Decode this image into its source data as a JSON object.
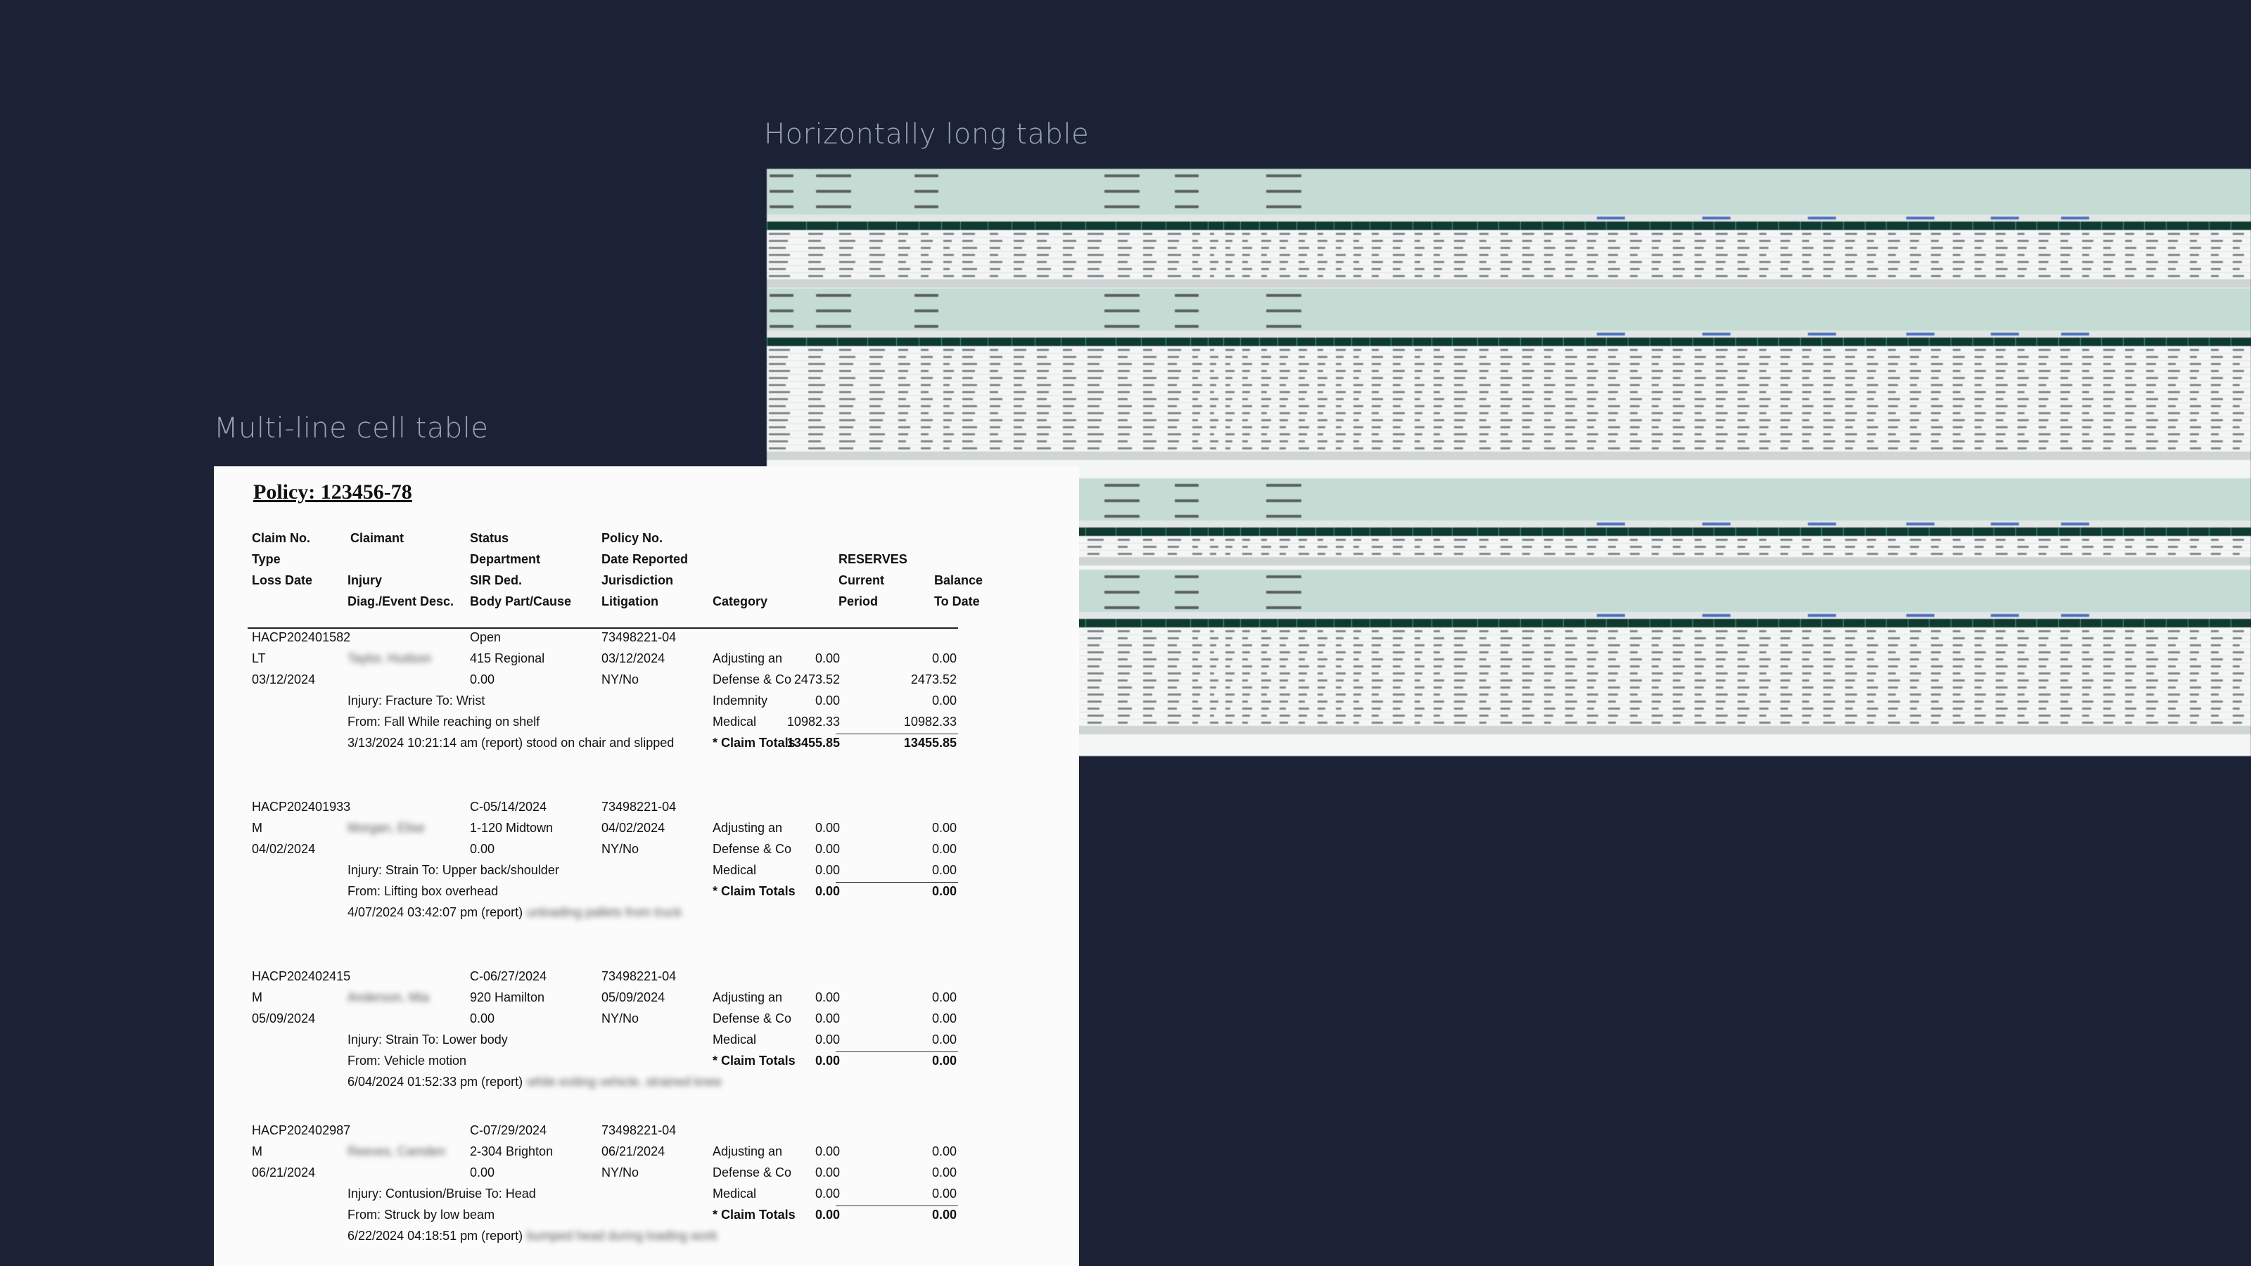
{
  "captions": {
    "wide": "Horizontally long table",
    "multi": "Multi-line cell table"
  },
  "colors": {
    "background": "#1c2236",
    "spreadsheet_header_fill": "#c5dcd5",
    "spreadsheet_column_bar": "#103a30",
    "document_paper": "#fbfbfb"
  },
  "document": {
    "policy_title": "Policy: 123456-78",
    "headers": {
      "claim_no": "Claim No.",
      "claimant": "Claimant",
      "status": "Status",
      "policy_no": "Policy No.",
      "type": "Type",
      "department": "Department",
      "date_reported": "Date Reported",
      "reserves": "RESERVES",
      "loss_date": "Loss Date",
      "injury": "Injury",
      "sir_ded": "SIR Ded.",
      "jurisdiction": "Jurisdiction",
      "current": "Current",
      "balance": "Balance",
      "diag": "Diag./Event Desc.",
      "body_part": "Body Part/Cause",
      "litigation": "Litigation",
      "category": "Category",
      "period": "Period",
      "to_date": "To Date"
    },
    "claims": [
      {
        "claim_no": "HACP202401582",
        "type": "LT",
        "loss_date": "03/12/2024",
        "claimant": "Taylor, Hudson",
        "status": "Open",
        "department": "415 Regional",
        "sir": "0.00",
        "policy_no": "73498221-04",
        "date_reported": "03/12/2024",
        "jurisdiction": "NY/No",
        "injury": "Injury: Fracture To: Wrist",
        "from": "From: Fall While reaching on shelf",
        "report_prefix": "3/13/2024 10:21:14 am (report) stood on chair and slipped",
        "report_blur": "",
        "categories": [
          {
            "name": "Adjusting an",
            "current": "0.00",
            "balance": "0.00"
          },
          {
            "name": "Defense & Co",
            "current": "2473.52",
            "balance": "2473.52"
          },
          {
            "name": "Indemnity",
            "current": "0.00",
            "balance": "0.00"
          },
          {
            "name": "Medical",
            "current": "10982.33",
            "balance": "10982.33"
          }
        ],
        "totals_label": "* Claim Totals",
        "total_current": "13455.85",
        "total_balance": "13455.85"
      },
      {
        "claim_no": "HACP202401933",
        "type": "M",
        "loss_date": "04/02/2024",
        "claimant": "Morgan, Elise",
        "status": "C-05/14/2024",
        "department": "1-120 Midtown",
        "sir": "0.00",
        "policy_no": "73498221-04",
        "date_reported": "04/02/2024",
        "jurisdiction": "NY/No",
        "injury": "Injury: Strain To: Upper back/shoulder",
        "from": "From: Lifting box overhead",
        "report_prefix": "4/07/2024 03:42:07 pm (report)",
        "report_blur": "unloading pallets from truck",
        "categories": [
          {
            "name": "Adjusting an",
            "current": "0.00",
            "balance": "0.00"
          },
          {
            "name": "Defense & Co",
            "current": "0.00",
            "balance": "0.00"
          },
          {
            "name": "Medical",
            "current": "0.00",
            "balance": "0.00"
          }
        ],
        "totals_label": "* Claim Totals",
        "total_current": "0.00",
        "total_balance": "0.00"
      },
      {
        "claim_no": "HACP202402415",
        "type": "M",
        "loss_date": "05/09/2024",
        "claimant": "Anderson, Mia",
        "status": "C-06/27/2024",
        "department": "920 Hamilton",
        "sir": "0.00",
        "policy_no": "73498221-04",
        "date_reported": "05/09/2024",
        "jurisdiction": "NY/No",
        "injury": "Injury: Strain To: Lower body",
        "from": "From: Vehicle motion",
        "report_prefix": "6/04/2024 01:52:33 pm (report)",
        "report_blur": "while exiting vehicle, strained knee",
        "categories": [
          {
            "name": "Adjusting an",
            "current": "0.00",
            "balance": "0.00"
          },
          {
            "name": "Defense & Co",
            "current": "0.00",
            "balance": "0.00"
          },
          {
            "name": "Medical",
            "current": "0.00",
            "balance": "0.00"
          }
        ],
        "totals_label": "* Claim Totals",
        "total_current": "0.00",
        "total_balance": "0.00"
      },
      {
        "claim_no": "HACP202402987",
        "type": "M",
        "loss_date": "06/21/2024",
        "claimant": "Reeves, Camden",
        "status": "C-07/29/2024",
        "department": "2-304 Brighton",
        "sir": "0.00",
        "policy_no": "73498221-04",
        "date_reported": "06/21/2024",
        "jurisdiction": "NY/No",
        "injury": "Injury: Contusion/Bruise To: Head",
        "from": "From: Struck by low beam",
        "report_prefix": "6/22/2024 04:18:51 pm (report)",
        "report_blur": "bumped head during loading work",
        "categories": [
          {
            "name": "Adjusting an",
            "current": "0.00",
            "balance": "0.00"
          },
          {
            "name": "Defense & Co",
            "current": "0.00",
            "balance": "0.00"
          },
          {
            "name": "Medical",
            "current": "0.00",
            "balance": "0.00"
          }
        ],
        "totals_label": "* Claim Totals",
        "total_current": "0.00",
        "total_balance": "0.00"
      }
    ]
  }
}
